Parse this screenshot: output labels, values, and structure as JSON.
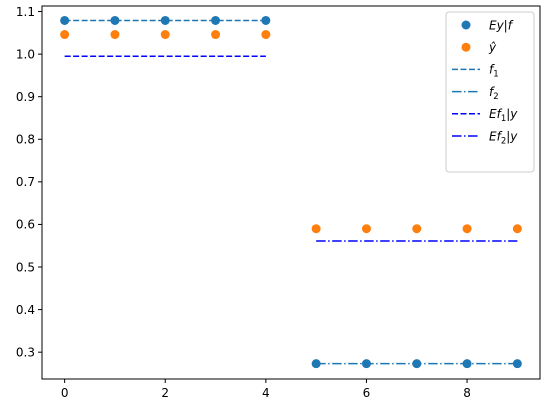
{
  "chart_data": {
    "type": "scatter",
    "xlim": [
      -0.45,
      9.45
    ],
    "ylim": [
      0.237,
      1.113
    ],
    "xticks": [
      0,
      2,
      4,
      6,
      8
    ],
    "yticks": [
      0.3,
      0.4,
      0.5,
      0.6,
      0.7,
      0.8,
      0.9,
      1.0,
      1.1
    ],
    "xtick_labels": [
      "0",
      "2",
      "4",
      "6",
      "8"
    ],
    "ytick_labels": [
      "0.3",
      "0.4",
      "0.5",
      "0.6",
      "0.7",
      "0.8",
      "0.9",
      "1.0",
      "1.1"
    ],
    "grid": false,
    "legend_position": "upper-right",
    "title": "",
    "xlabel": "",
    "ylabel": "",
    "series": [
      {
        "name": "Ey|f",
        "legend": {
          "main": "Ey|f",
          "sub": "",
          "rest": ""
        },
        "kind": "markers",
        "color": "#1f77b4",
        "x": [
          0,
          1,
          2,
          3,
          4,
          5,
          6,
          7,
          8,
          9
        ],
        "y": [
          1.079,
          1.079,
          1.079,
          1.079,
          1.079,
          0.273,
          0.273,
          0.273,
          0.273,
          0.273
        ]
      },
      {
        "name": "ŷ",
        "legend": {
          "main": "ŷ",
          "sub": "",
          "rest": ""
        },
        "kind": "markers",
        "color": "#ff7f0e",
        "x": [
          0,
          1,
          2,
          3,
          4,
          5,
          6,
          7,
          8,
          9
        ],
        "y": [
          1.046,
          1.046,
          1.046,
          1.046,
          1.046,
          0.59,
          0.59,
          0.59,
          0.59,
          0.59
        ]
      },
      {
        "name": "f1",
        "legend": {
          "main": "f",
          "sub": "1",
          "rest": ""
        },
        "kind": "line",
        "style": "dashed",
        "color": "#1f77b4",
        "x": [
          0,
          4
        ],
        "y": [
          1.079,
          1.079
        ]
      },
      {
        "name": "f2",
        "legend": {
          "main": "f",
          "sub": "2",
          "rest": ""
        },
        "kind": "line",
        "style": "dashdot",
        "color": "#1f77b4",
        "x": [
          5,
          9
        ],
        "y": [
          0.273,
          0.273
        ]
      },
      {
        "name": "Ef1|y",
        "legend": {
          "main": "Ef",
          "sub": "1",
          "rest": "|y"
        },
        "kind": "line",
        "style": "dashed",
        "color": "#0000ff",
        "x": [
          0,
          4
        ],
        "y": [
          0.995,
          0.995
        ]
      },
      {
        "name": "Ef2|y",
        "legend": {
          "main": "Ef",
          "sub": "2",
          "rest": "|y"
        },
        "kind": "line",
        "style": "dashdot",
        "color": "#0000ff",
        "x": [
          5,
          9
        ],
        "y": [
          0.561,
          0.561
        ]
      }
    ]
  }
}
